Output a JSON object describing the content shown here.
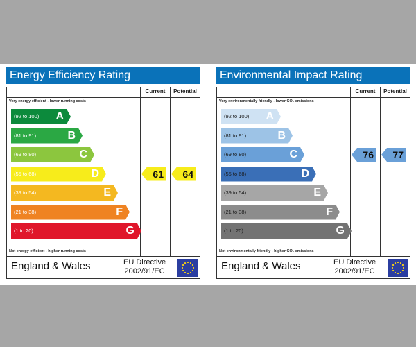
{
  "charts": [
    {
      "key": "energy",
      "title": "Energy Efficiency Rating",
      "col_current": "Current",
      "col_potential": "Potential",
      "top_note": "Very energy efficient - lower running costs",
      "bottom_note": "Not energy efficient - higher running costs",
      "footer_country": "England & Wales",
      "footer_directive_1": "EU Directive",
      "footer_directive_2": "2002/91/EC",
      "current_value": "61",
      "potential_value": "64"
    },
    {
      "key": "env",
      "title": "Environmental Impact Rating",
      "col_current": "Current",
      "col_potential": "Potential",
      "top_note": "Very environmentally friendly - lower CO₂ emissions",
      "bottom_note": "Not environmentally friendly - higher CO₂ emissions",
      "footer_country": "England & Wales",
      "footer_directive_1": "EU Directive",
      "footer_directive_2": "2002/91/EC",
      "current_value": "76",
      "potential_value": "77"
    }
  ],
  "chart_data": [
    {
      "type": "bar",
      "title": "Energy Efficiency Rating",
      "categories": [
        "A",
        "B",
        "C",
        "D",
        "E",
        "F",
        "G"
      ],
      "ranges": [
        "(92 to 100)",
        "(81 to 91)",
        "(69 to 80)",
        "(55 to 68)",
        "(39 to 54)",
        "(21 to 38)",
        "(1 to 20)"
      ],
      "colors": [
        "#0c8a3c",
        "#2ba844",
        "#8cc63e",
        "#f7ec1b",
        "#f4b820",
        "#ef8322",
        "#e0162b"
      ],
      "current": 61,
      "current_band": "D",
      "potential": 64,
      "potential_band": "D",
      "marker_color": "#f7ec1b"
    },
    {
      "type": "bar",
      "title": "Environmental Impact Rating",
      "categories": [
        "A",
        "B",
        "C",
        "D",
        "E",
        "F",
        "G"
      ],
      "ranges": [
        "(92 to 100)",
        "(81 to 91)",
        "(69 to 80)",
        "(55 to 68)",
        "(39 to 54)",
        "(21 to 38)",
        "(1 to 20)"
      ],
      "colors": [
        "#cfe2f3",
        "#9dc3e6",
        "#6aa0d8",
        "#3a6fb7",
        "#a6a6a6",
        "#8c8c8c",
        "#737373"
      ],
      "current": 76,
      "current_band": "C",
      "potential": 77,
      "potential_band": "C",
      "marker_color": "#6aa0d8"
    }
  ]
}
